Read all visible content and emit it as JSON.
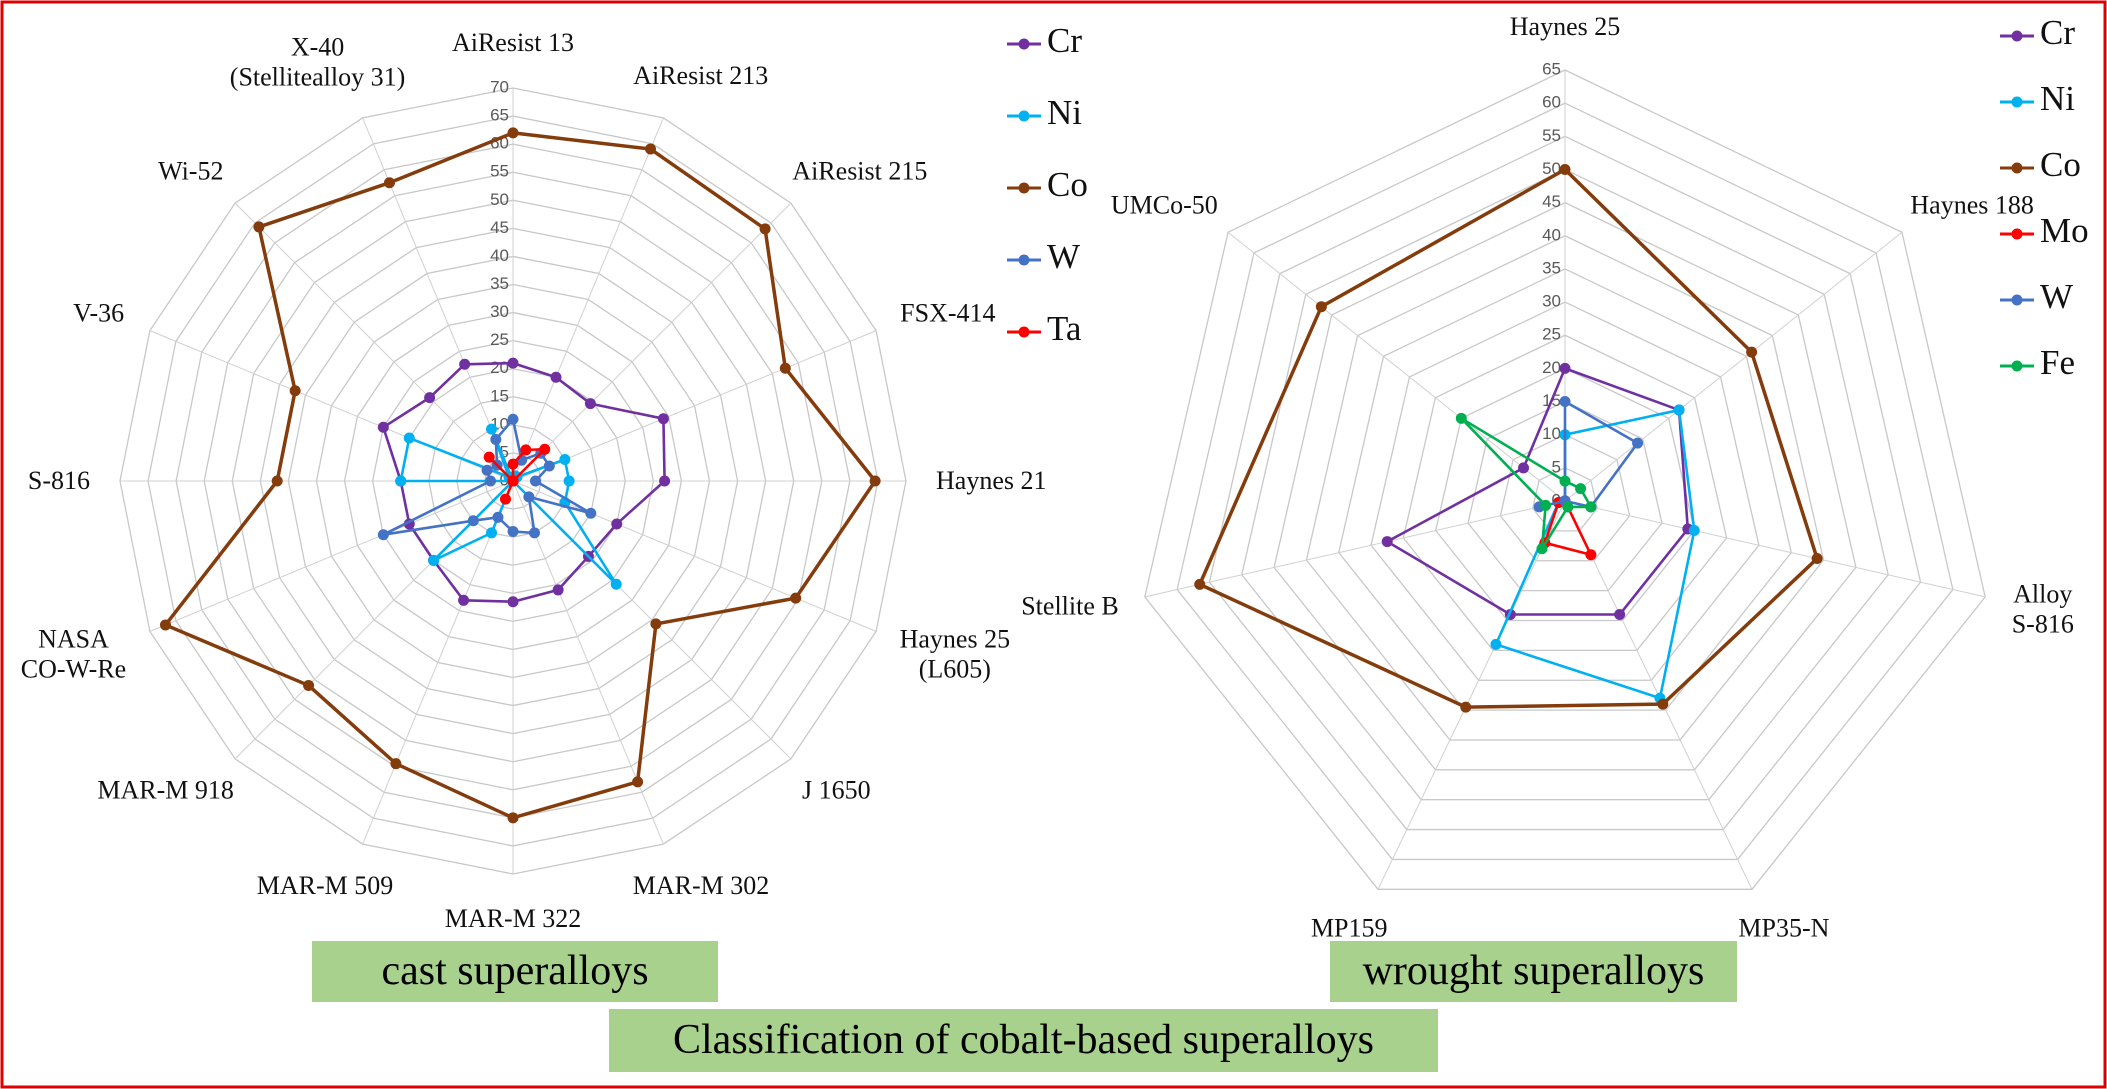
{
  "title": "Classification of cobalt-based superalloys",
  "chart_data": [
    {
      "type": "radar",
      "title": "cast superalloys",
      "categories": [
        "AiResist 13",
        "AiResist 213",
        "AiResist 215",
        "FSX-414",
        "Haynes 21",
        "Haynes 25\n(L605)",
        "J 1650",
        "MAR-M 302",
        "MAR-M 322",
        "MAR-M 509",
        "MAR-M 918",
        "NASA\nCO-W-Re",
        "S-816",
        "V-36",
        "Wi-52",
        "X-40\n(Stellitealloy 31)"
      ],
      "ylim": [
        0,
        70
      ],
      "yticks": [
        0,
        5,
        10,
        15,
        20,
        25,
        30,
        35,
        40,
        45,
        50,
        55,
        60,
        65,
        70
      ],
      "grid": true,
      "series": [
        {
          "name": "Cr",
          "color": "#7030a0",
          "values": [
            21,
            20,
            19.5,
            29,
            27,
            20,
            19,
            21,
            21.5,
            23,
            20,
            20,
            20,
            25,
            21,
            22.5
          ]
        },
        {
          "name": "Ni",
          "color": "#00b0f0",
          "values": [
            0,
            1,
            1,
            10,
            10,
            10,
            26,
            0,
            0,
            10,
            20,
            0,
            20,
            20,
            1,
            10
          ]
        },
        {
          "name": "Co",
          "color": "#843c0c",
          "values": [
            62,
            64,
            63.5,
            52.5,
            64.5,
            54.5,
            36,
            58,
            60,
            54.5,
            51.5,
            67,
            42,
            42,
            64,
            57.5
          ]
        },
        {
          "name": "W",
          "color": "#4472c4",
          "values": [
            11,
            4,
            7,
            7,
            4,
            15,
            4,
            10,
            9,
            7,
            10,
            25,
            4,
            5,
            4,
            8
          ]
        },
        {
          "name": "Ta",
          "color": "#ff0000",
          "values": [
            3,
            6,
            8,
            0,
            0,
            0,
            0,
            0,
            0,
            3.5,
            0,
            0,
            0,
            0,
            6,
            0
          ]
        }
      ]
    },
    {
      "type": "radar",
      "title": "wrought superalloys",
      "categories": [
        "Haynes 25",
        "Haynes 188",
        "Alloy\nS-816",
        "MP35-N",
        "MP159",
        "Stellite B",
        "UMCo-50"
      ],
      "ylim": [
        0,
        65
      ],
      "yticks": [
        0,
        5,
        10,
        15,
        20,
        25,
        30,
        35,
        40,
        45,
        50,
        55,
        60,
        65
      ],
      "grid": true,
      "series": [
        {
          "name": "Cr",
          "color": "#7030a0",
          "values": [
            20,
            22,
            19,
            19,
            19,
            27.5,
            8
          ]
        },
        {
          "name": "Ni",
          "color": "#00b0f0",
          "values": [
            10,
            22,
            20,
            33,
            24,
            1,
            0
          ]
        },
        {
          "name": "Co",
          "color": "#843c0c",
          "values": [
            50,
            36,
            39,
            34,
            34.5,
            56.5,
            47
          ]
        },
        {
          "name": "Mo",
          "color": "#ff0000",
          "values": [
            0,
            0,
            0,
            9,
            7,
            1,
            0
          ]
        },
        {
          "name": "W",
          "color": "#4472c4",
          "values": [
            15,
            14,
            4,
            0,
            0,
            4,
            0
          ]
        },
        {
          "name": "Fe",
          "color": "#00b050",
          "values": [
            3,
            3,
            4,
            1,
            8,
            3,
            20
          ]
        }
      ]
    }
  ]
}
